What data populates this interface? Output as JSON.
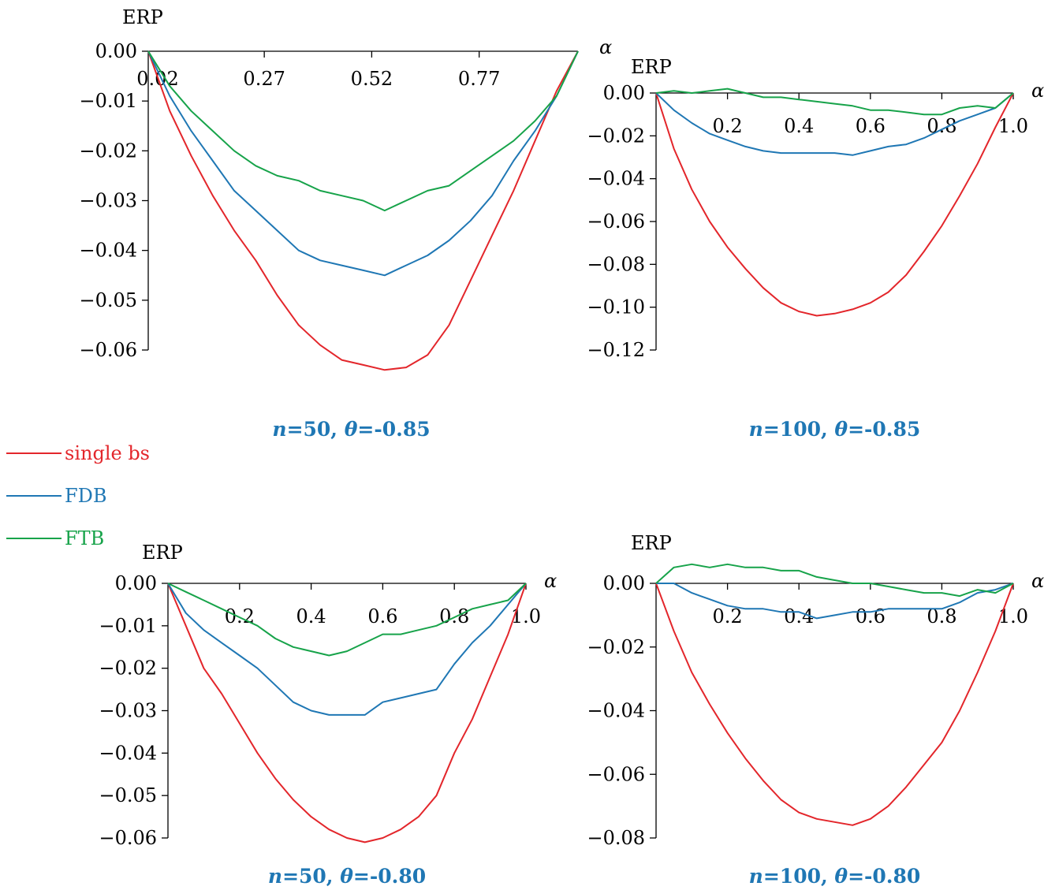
{
  "legend": [
    {
      "name": "single bs",
      "color": "#e3262b"
    },
    {
      "name": "FDB",
      "color": "#1f77b4"
    },
    {
      "name": "FTB",
      "color": "#17a34a"
    }
  ],
  "chart_data": [
    {
      "type": "line",
      "caption": "n=50, θ=-0.85",
      "caption_var": "n",
      "caption_rest1": "=50, ",
      "caption_var2": "θ",
      "caption_rest2": "=-0.85",
      "ylabel": "ERP",
      "xlabel": "α",
      "xlim": [
        0,
        1
      ],
      "ylim": [
        -0.06,
        0.0
      ],
      "xticks": [
        0.27,
        0.52,
        0.77
      ],
      "xtick_labels": [
        "0.27",
        "0.52",
        "0.77"
      ],
      "extra_xlabel": "0.02",
      "yticks": [
        0,
        -0.01,
        -0.02,
        -0.03,
        -0.04,
        -0.05,
        -0.06
      ],
      "ytick_labels": [
        "0.00",
        "−0.01",
        "−0.02",
        "−0.03",
        "−0.04",
        "−0.05",
        "−0.06"
      ],
      "series": [
        {
          "name": "single bs",
          "x": [
            0,
            0.05,
            0.1,
            0.15,
            0.2,
            0.25,
            0.3,
            0.35,
            0.4,
            0.45,
            0.5,
            0.55,
            0.6,
            0.65,
            0.7,
            0.75,
            0.8,
            0.85,
            0.9,
            0.95,
            1.0
          ],
          "y": [
            0,
            -0.012,
            -0.021,
            -0.029,
            -0.036,
            -0.042,
            -0.049,
            -0.055,
            -0.059,
            -0.062,
            -0.063,
            -0.064,
            -0.0635,
            -0.061,
            -0.055,
            -0.046,
            -0.037,
            -0.028,
            -0.018,
            -0.008,
            0
          ]
        },
        {
          "name": "FDB",
          "x": [
            0,
            0.05,
            0.1,
            0.15,
            0.2,
            0.25,
            0.3,
            0.35,
            0.4,
            0.45,
            0.5,
            0.55,
            0.6,
            0.65,
            0.7,
            0.75,
            0.8,
            0.85,
            0.9,
            0.95,
            1.0
          ],
          "y": [
            0,
            -0.009,
            -0.016,
            -0.022,
            -0.028,
            -0.032,
            -0.036,
            -0.04,
            -0.042,
            -0.043,
            -0.044,
            -0.045,
            -0.043,
            -0.041,
            -0.038,
            -0.034,
            -0.029,
            -0.022,
            -0.016,
            -0.009,
            0
          ]
        },
        {
          "name": "FTB",
          "x": [
            0,
            0.05,
            0.1,
            0.15,
            0.2,
            0.25,
            0.3,
            0.35,
            0.4,
            0.45,
            0.5,
            0.55,
            0.6,
            0.65,
            0.7,
            0.75,
            0.8,
            0.85,
            0.9,
            0.95,
            1.0
          ],
          "y": [
            0,
            -0.007,
            -0.012,
            -0.016,
            -0.02,
            -0.023,
            -0.025,
            -0.026,
            -0.028,
            -0.029,
            -0.03,
            -0.032,
            -0.03,
            -0.028,
            -0.027,
            -0.024,
            -0.021,
            -0.018,
            -0.014,
            -0.009,
            0
          ]
        }
      ]
    },
    {
      "type": "line",
      "caption_var": "n",
      "caption_rest1": "=100, ",
      "caption_var2": "θ",
      "caption_rest2": "=-0.85",
      "ylabel": "ERP",
      "xlabel": "α",
      "xlim": [
        0,
        1
      ],
      "ylim": [
        -0.12,
        0.0
      ],
      "xticks": [
        0.2,
        0.4,
        0.6,
        0.8,
        1.0
      ],
      "xtick_labels": [
        "0.2",
        "0.4",
        "0.6",
        "0.8",
        "1.0"
      ],
      "yticks": [
        0,
        -0.02,
        -0.04,
        -0.06,
        -0.08,
        -0.1,
        -0.12
      ],
      "ytick_labels": [
        "0.00",
        "−0.02",
        "−0.04",
        "−0.06",
        "−0.08",
        "−0.10",
        "−0.12"
      ],
      "series": [
        {
          "name": "single bs",
          "x": [
            0,
            0.05,
            0.1,
            0.15,
            0.2,
            0.25,
            0.3,
            0.35,
            0.4,
            0.45,
            0.5,
            0.55,
            0.6,
            0.65,
            0.7,
            0.75,
            0.8,
            0.85,
            0.9,
            0.95,
            1.0
          ],
          "y": [
            0,
            -0.026,
            -0.045,
            -0.06,
            -0.072,
            -0.082,
            -0.091,
            -0.098,
            -0.102,
            -0.104,
            -0.103,
            -0.101,
            -0.098,
            -0.093,
            -0.085,
            -0.074,
            -0.062,
            -0.048,
            -0.033,
            -0.016,
            0
          ]
        },
        {
          "name": "FDB",
          "x": [
            0,
            0.05,
            0.1,
            0.15,
            0.2,
            0.25,
            0.3,
            0.35,
            0.4,
            0.45,
            0.5,
            0.55,
            0.6,
            0.65,
            0.7,
            0.75,
            0.8,
            0.85,
            0.9,
            0.95,
            1.0
          ],
          "y": [
            0,
            -0.008,
            -0.014,
            -0.019,
            -0.022,
            -0.025,
            -0.027,
            -0.028,
            -0.028,
            -0.028,
            -0.028,
            -0.029,
            -0.027,
            -0.025,
            -0.024,
            -0.021,
            -0.017,
            -0.013,
            -0.01,
            -0.007,
            0
          ]
        },
        {
          "name": "FTB",
          "x": [
            0,
            0.05,
            0.1,
            0.15,
            0.2,
            0.25,
            0.3,
            0.35,
            0.4,
            0.45,
            0.5,
            0.55,
            0.6,
            0.65,
            0.7,
            0.75,
            0.8,
            0.85,
            0.9,
            0.95,
            1.0
          ],
          "y": [
            0,
            0.001,
            0.0,
            0.001,
            0.002,
            0.0,
            -0.002,
            -0.002,
            -0.003,
            -0.004,
            -0.005,
            -0.006,
            -0.008,
            -0.008,
            -0.009,
            -0.01,
            -0.01,
            -0.007,
            -0.006,
            -0.007,
            0
          ]
        }
      ]
    },
    {
      "type": "line",
      "caption_var": "n",
      "caption_rest1": "=50, ",
      "caption_var2": "θ",
      "caption_rest2": "=-0.80",
      "ylabel": "ERP",
      "xlabel": "α",
      "xlim": [
        0,
        1
      ],
      "ylim": [
        -0.06,
        0.0
      ],
      "xticks": [
        0.2,
        0.4,
        0.6,
        0.8,
        1.0
      ],
      "xtick_labels": [
        "0.2",
        "0.4",
        "0.6",
        "0.8",
        "1.0"
      ],
      "yticks": [
        0,
        -0.01,
        -0.02,
        -0.03,
        -0.04,
        -0.05,
        -0.06
      ],
      "ytick_labels": [
        "0.00",
        "−0.01",
        "−0.02",
        "−0.03",
        "−0.04",
        "−0.05",
        "−0.06"
      ],
      "series": [
        {
          "name": "single bs",
          "x": [
            0,
            0.05,
            0.1,
            0.15,
            0.2,
            0.25,
            0.3,
            0.35,
            0.4,
            0.45,
            0.5,
            0.55,
            0.6,
            0.65,
            0.7,
            0.75,
            0.8,
            0.85,
            0.9,
            0.95,
            1.0
          ],
          "y": [
            0,
            -0.01,
            -0.02,
            -0.026,
            -0.033,
            -0.04,
            -0.046,
            -0.051,
            -0.055,
            -0.058,
            -0.06,
            -0.061,
            -0.06,
            -0.058,
            -0.055,
            -0.05,
            -0.04,
            -0.032,
            -0.022,
            -0.012,
            0
          ]
        },
        {
          "name": "FDB",
          "x": [
            0,
            0.05,
            0.1,
            0.15,
            0.2,
            0.25,
            0.3,
            0.35,
            0.4,
            0.45,
            0.5,
            0.55,
            0.6,
            0.65,
            0.7,
            0.75,
            0.8,
            0.85,
            0.9,
            0.95,
            1.0
          ],
          "y": [
            0,
            -0.007,
            -0.011,
            -0.014,
            -0.017,
            -0.02,
            -0.024,
            -0.028,
            -0.03,
            -0.031,
            -0.031,
            -0.031,
            -0.028,
            -0.027,
            -0.026,
            -0.025,
            -0.019,
            -0.014,
            -0.01,
            -0.005,
            0
          ]
        },
        {
          "name": "FTB",
          "x": [
            0,
            0.05,
            0.1,
            0.15,
            0.2,
            0.25,
            0.3,
            0.35,
            0.4,
            0.45,
            0.5,
            0.55,
            0.6,
            0.65,
            0.7,
            0.75,
            0.8,
            0.85,
            0.9,
            0.95,
            1.0
          ],
          "y": [
            0,
            -0.002,
            -0.004,
            -0.006,
            -0.008,
            -0.01,
            -0.013,
            -0.015,
            -0.016,
            -0.017,
            -0.016,
            -0.014,
            -0.012,
            -0.012,
            -0.011,
            -0.01,
            -0.008,
            -0.006,
            -0.005,
            -0.004,
            0
          ]
        }
      ]
    },
    {
      "type": "line",
      "caption_var": "n",
      "caption_rest1": "=100, ",
      "caption_var2": "θ",
      "caption_rest2": "=-0.80",
      "ylabel": "ERP",
      "xlabel": "α",
      "xlim": [
        0,
        1
      ],
      "ylim": [
        -0.08,
        0.0
      ],
      "xticks": [
        0.2,
        0.4,
        0.6,
        0.8,
        1.0
      ],
      "xtick_labels": [
        "0.2",
        "0.4",
        "0.6",
        "0.8",
        "1.0"
      ],
      "yticks": [
        0,
        -0.02,
        -0.04,
        -0.06,
        -0.08
      ],
      "ytick_labels": [
        "0.00",
        "−0.02",
        "−0.04",
        "−0.06",
        "−0.08"
      ],
      "series": [
        {
          "name": "single bs",
          "x": [
            0,
            0.05,
            0.1,
            0.15,
            0.2,
            0.25,
            0.3,
            0.35,
            0.4,
            0.45,
            0.5,
            0.55,
            0.6,
            0.65,
            0.7,
            0.75,
            0.8,
            0.85,
            0.9,
            0.95,
            1.0
          ],
          "y": [
            0,
            -0.015,
            -0.028,
            -0.038,
            -0.047,
            -0.055,
            -0.062,
            -0.068,
            -0.072,
            -0.074,
            -0.075,
            -0.076,
            -0.074,
            -0.07,
            -0.064,
            -0.057,
            -0.05,
            -0.04,
            -0.028,
            -0.015,
            0
          ]
        },
        {
          "name": "FDB",
          "x": [
            0,
            0.05,
            0.1,
            0.15,
            0.2,
            0.25,
            0.3,
            0.35,
            0.4,
            0.45,
            0.5,
            0.55,
            0.6,
            0.65,
            0.7,
            0.75,
            0.8,
            0.85,
            0.9,
            0.95,
            1.0
          ],
          "y": [
            0,
            0.0,
            -0.003,
            -0.005,
            -0.007,
            -0.008,
            -0.008,
            -0.009,
            -0.009,
            -0.011,
            -0.01,
            -0.009,
            -0.009,
            -0.008,
            -0.008,
            -0.008,
            -0.008,
            -0.006,
            -0.003,
            -0.002,
            0
          ]
        },
        {
          "name": "FTB",
          "x": [
            0,
            0.05,
            0.1,
            0.15,
            0.2,
            0.25,
            0.3,
            0.35,
            0.4,
            0.45,
            0.5,
            0.55,
            0.6,
            0.65,
            0.7,
            0.75,
            0.8,
            0.85,
            0.9,
            0.95,
            1.0
          ],
          "y": [
            0,
            0.005,
            0.006,
            0.005,
            0.006,
            0.005,
            0.005,
            0.004,
            0.004,
            0.002,
            0.001,
            0.0,
            0.0,
            -0.001,
            -0.002,
            -0.003,
            -0.003,
            -0.004,
            -0.002,
            -0.003,
            0
          ]
        }
      ]
    }
  ]
}
